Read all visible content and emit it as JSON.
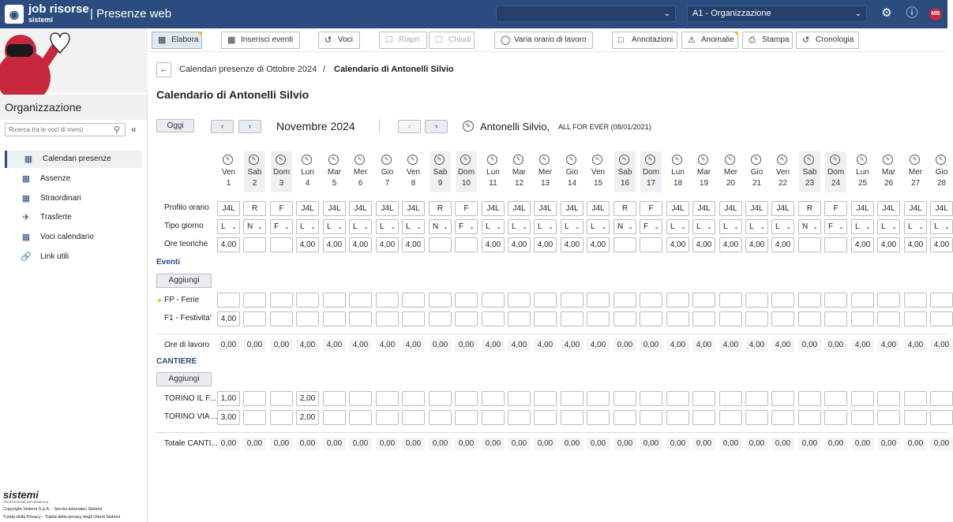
{
  "topbar": {
    "brand": "job risorse",
    "brand_sub": "sistemi",
    "app_name": "| Presenze web",
    "org_select": "A1 - Organizzazione",
    "avatar_initials": "MB"
  },
  "sidebar": {
    "title": "Organizzazione",
    "search_placeholder": "Ricerca tra le voci di menù",
    "items": [
      {
        "label": "Calendari presenze",
        "icon": "calendar-check-icon"
      },
      {
        "label": "Assenze",
        "icon": "calendar-icon"
      },
      {
        "label": "Straordinari",
        "icon": "calendar-plus-icon"
      },
      {
        "label": "Trasferte",
        "icon": "plane-icon"
      },
      {
        "label": "Voci calendario",
        "icon": "calendar-list-icon"
      },
      {
        "label": "Link utili",
        "icon": "link-icon"
      }
    ],
    "footer": {
      "logo": "sistemi",
      "logo_sub": "PROFESSIONE INFORMATICA",
      "line1": "Copyright Sistemi S.p.A. - Servizi telematici Sistemi",
      "line2": "Tutela della Privacy - Tutela della privacy degli Utenti Sistemi"
    }
  },
  "toolbar": {
    "elabora": "Elabora",
    "inserisci": "Inserisci eventi",
    "voci": "Voci",
    "riapri": "Riapri",
    "chiudi": "Chiudi",
    "varia": "Varia orario di lavoro",
    "annotazioni": "Annotazioni",
    "anomalie": "Anomalie",
    "stampa": "Stampa",
    "cronologia": "Cronologia"
  },
  "breadcrumb": {
    "parent": "Calendari presenze di Ottobre 2024",
    "separator": "/",
    "current": "Calendario di Antonelli Silvio"
  },
  "page_title": "Calendario di Antonelli Silvio",
  "nav": {
    "today": "Oggi",
    "month": "Novembre 2024",
    "employee": "Antonelli Silvio,",
    "employee_detail": "ALL FOR EVER (08/01/2021)"
  },
  "labels": {
    "profilo": "Profilo orario",
    "tipo": "Tipo giorno",
    "ore_teoriche": "Ore teoriche",
    "eventi": "Eventi",
    "aggiungi": "Aggiungi",
    "fp": "FP - Ferie",
    "f1": "F1 - Festivita'",
    "ore_lavoro": "Ore di lavoro",
    "cantiere": "CANTIERE",
    "torino1": "TORINO IL F...",
    "torino2": "TORINO VIA ...",
    "totale": "Totale CANTI..."
  },
  "days": [
    {
      "name": "Ven",
      "num": "1",
      "profilo": "J4L",
      "tipo": "L",
      "ore": "4,00",
      "f1": "4,00",
      "lavoro": "0,00",
      "t1": "1,00",
      "t2": "3,00",
      "tot": "0,00",
      "we": false
    },
    {
      "name": "Sab",
      "num": "2",
      "profilo": "R",
      "tipo": "N",
      "ore": "",
      "f1": "",
      "lavoro": "0,00",
      "t1": "",
      "t2": "",
      "tot": "0,00",
      "we": true
    },
    {
      "name": "Dom",
      "num": "3",
      "profilo": "F",
      "tipo": "F",
      "ore": "",
      "f1": "",
      "lavoro": "0,00",
      "t1": "",
      "t2": "",
      "tot": "0,00",
      "we": true
    },
    {
      "name": "Lun",
      "num": "4",
      "profilo": "J4L",
      "tipo": "L",
      "ore": "4,00",
      "f1": "",
      "lavoro": "4,00",
      "t1": "2,00",
      "t2": "2,00",
      "tot": "0,00",
      "we": false
    },
    {
      "name": "Mar",
      "num": "5",
      "profilo": "J4L",
      "tipo": "L",
      "ore": "4,00",
      "f1": "",
      "lavoro": "4,00",
      "t1": "",
      "t2": "",
      "tot": "0,00",
      "we": false
    },
    {
      "name": "Mer",
      "num": "6",
      "profilo": "J4L",
      "tipo": "L",
      "ore": "4,00",
      "f1": "",
      "lavoro": "4,00",
      "t1": "",
      "t2": "",
      "tot": "0,00",
      "we": false
    },
    {
      "name": "Gio",
      "num": "7",
      "profilo": "J4L",
      "tipo": "L",
      "ore": "4,00",
      "f1": "",
      "lavoro": "4,00",
      "t1": "",
      "t2": "",
      "tot": "0,00",
      "we": false
    },
    {
      "name": "Ven",
      "num": "8",
      "profilo": "J4L",
      "tipo": "L",
      "ore": "4,00",
      "f1": "",
      "lavoro": "4,00",
      "t1": "",
      "t2": "",
      "tot": "0,00",
      "we": false
    },
    {
      "name": "Sab",
      "num": "9",
      "profilo": "R",
      "tipo": "N",
      "ore": "",
      "f1": "",
      "lavoro": "0,00",
      "t1": "",
      "t2": "",
      "tot": "0,00",
      "we": true
    },
    {
      "name": "Dom",
      "num": "10",
      "profilo": "F",
      "tipo": "F",
      "ore": "",
      "f1": "",
      "lavoro": "0,00",
      "t1": "",
      "t2": "",
      "tot": "0,00",
      "we": true
    },
    {
      "name": "Lun",
      "num": "11",
      "profilo": "J4L",
      "tipo": "L",
      "ore": "4,00",
      "f1": "",
      "lavoro": "4,00",
      "t1": "",
      "t2": "",
      "tot": "0,00",
      "we": false
    },
    {
      "name": "Mar",
      "num": "12",
      "profilo": "J4L",
      "tipo": "L",
      "ore": "4,00",
      "f1": "",
      "lavoro": "4,00",
      "t1": "",
      "t2": "",
      "tot": "0,00",
      "we": false
    },
    {
      "name": "Mer",
      "num": "13",
      "profilo": "J4L",
      "tipo": "L",
      "ore": "4,00",
      "f1": "",
      "lavoro": "4,00",
      "t1": "",
      "t2": "",
      "tot": "0,00",
      "we": false
    },
    {
      "name": "Gio",
      "num": "14",
      "profilo": "J4L",
      "tipo": "L",
      "ore": "4,00",
      "f1": "",
      "lavoro": "4,00",
      "t1": "",
      "t2": "",
      "tot": "0,00",
      "we": false
    },
    {
      "name": "Ven",
      "num": "15",
      "profilo": "J4L",
      "tipo": "L",
      "ore": "4,00",
      "f1": "",
      "lavoro": "4,00",
      "t1": "",
      "t2": "",
      "tot": "0,00",
      "we": false
    },
    {
      "name": "Sab",
      "num": "16",
      "profilo": "R",
      "tipo": "N",
      "ore": "",
      "f1": "",
      "lavoro": "0,00",
      "t1": "",
      "t2": "",
      "tot": "0,00",
      "we": true
    },
    {
      "name": "Dom",
      "num": "17",
      "profilo": "F",
      "tipo": "F",
      "ore": "",
      "f1": "",
      "lavoro": "0,00",
      "t1": "",
      "t2": "",
      "tot": "0,00",
      "we": true
    },
    {
      "name": "Lun",
      "num": "18",
      "profilo": "J4L",
      "tipo": "L",
      "ore": "4,00",
      "f1": "",
      "lavoro": "4,00",
      "t1": "",
      "t2": "",
      "tot": "0,00",
      "we": false
    },
    {
      "name": "Mar",
      "num": "19",
      "profilo": "J4L",
      "tipo": "L",
      "ore": "4,00",
      "f1": "",
      "lavoro": "4,00",
      "t1": "",
      "t2": "",
      "tot": "0,00",
      "we": false
    },
    {
      "name": "Mer",
      "num": "20",
      "profilo": "J4L",
      "tipo": "L",
      "ore": "4,00",
      "f1": "",
      "lavoro": "4,00",
      "t1": "",
      "t2": "",
      "tot": "0,00",
      "we": false
    },
    {
      "name": "Gio",
      "num": "21",
      "profilo": "J4L",
      "tipo": "L",
      "ore": "4,00",
      "f1": "",
      "lavoro": "4,00",
      "t1": "",
      "t2": "",
      "tot": "0,00",
      "we": false
    },
    {
      "name": "Ven",
      "num": "22",
      "profilo": "J4L",
      "tipo": "L",
      "ore": "4,00",
      "f1": "",
      "lavoro": "4,00",
      "t1": "",
      "t2": "",
      "tot": "0,00",
      "we": false
    },
    {
      "name": "Sab",
      "num": "23",
      "profilo": "R",
      "tipo": "N",
      "ore": "",
      "f1": "",
      "lavoro": "0,00",
      "t1": "",
      "t2": "",
      "tot": "0,00",
      "we": true
    },
    {
      "name": "Dom",
      "num": "24",
      "profilo": "F",
      "tipo": "F",
      "ore": "",
      "f1": "",
      "lavoro": "0,00",
      "t1": "",
      "t2": "",
      "tot": "0,00",
      "we": true
    },
    {
      "name": "Lun",
      "num": "25",
      "profilo": "J4L",
      "tipo": "L",
      "ore": "4,00",
      "f1": "",
      "lavoro": "4,00",
      "t1": "",
      "t2": "",
      "tot": "0,00",
      "we": false
    },
    {
      "name": "Mar",
      "num": "26",
      "profilo": "J4L",
      "tipo": "L",
      "ore": "4,00",
      "f1": "",
      "lavoro": "4,00",
      "t1": "",
      "t2": "",
      "tot": "0,00",
      "we": false
    },
    {
      "name": "Mer",
      "num": "27",
      "profilo": "J4L",
      "tipo": "L",
      "ore": "4,00",
      "f1": "",
      "lavoro": "4,00",
      "t1": "",
      "t2": "",
      "tot": "0,00",
      "we": false
    },
    {
      "name": "Gio",
      "num": "28",
      "profilo": "J4L",
      "tipo": "L",
      "ore": "4,00",
      "f1": "",
      "lavoro": "4,00",
      "t1": "",
      "t2": "",
      "tot": "0,00",
      "we": false
    }
  ]
}
